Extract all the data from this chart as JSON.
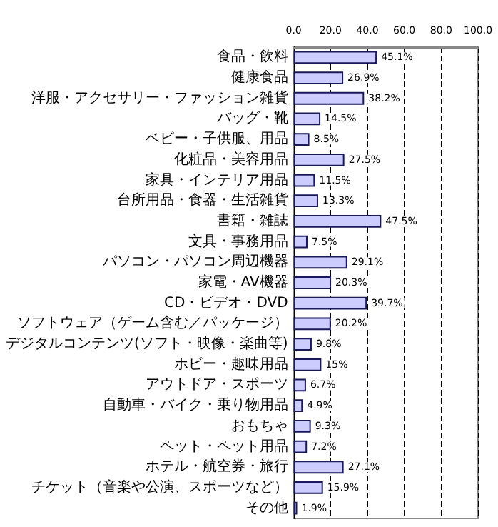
{
  "chart_data": {
    "type": "bar",
    "orientation": "horizontal",
    "categories": [
      "食品・飲料",
      "健康食品",
      "洋服・アクセサリー・ファッション雑貨",
      "バッグ・靴",
      "ベビー・子供服、用品",
      "化粧品・美容用品",
      "家具・インテリア用品",
      "台所用品・食器・生活雑貨",
      "書籍・雑誌",
      "文具・事務用品",
      "パソコン・パソコン周辺機器",
      "家電・AV機器",
      "CD・ビデオ・DVD",
      "ソフトウェア（ゲーム含む／パッケージ）",
      "デジタルコンテンツ(ソフト・映像・楽曲等)",
      "ホビー・趣味用品",
      "アウトドア・スポーツ",
      "自動車・バイク・乗り物用品",
      "おもちゃ",
      "ペット・ペット用品",
      "ホテル・航空券・旅行",
      "チケット（音楽や公演、スポーツなど）",
      "その他"
    ],
    "values": [
      45.1,
      26.9,
      38.2,
      14.5,
      8.5,
      27.5,
      11.5,
      13.3,
      47.5,
      7.5,
      29.1,
      20.3,
      39.7,
      20.2,
      9.8,
      15,
      6.7,
      4.9,
      9.3,
      7.2,
      27.1,
      15.9,
      1.9
    ],
    "value_labels": [
      "45.1%",
      "26.9%",
      "38.2%",
      "14.5%",
      "8.5%",
      "27.5%",
      "11.5%",
      "13.3%",
      "47.5%",
      "7.5%",
      "29.1%",
      "20.3%",
      "39.7%",
      "20.2%",
      "9.8%",
      "15%",
      "6.7%",
      "4.9%",
      "9.3%",
      "7.2%",
      "27.1%",
      "15.9%",
      "1.9%"
    ],
    "color": "#ccccff",
    "xlim": [
      0,
      100
    ],
    "xticks": [
      {
        "value": 0,
        "label": "0.0"
      },
      {
        "value": 20,
        "label": "20.0"
      },
      {
        "value": 40,
        "label": "40.0"
      },
      {
        "value": 60,
        "label": "60.0"
      },
      {
        "value": 80,
        "label": "80.0"
      },
      {
        "value": 100,
        "label": "100.0"
      }
    ],
    "grid": "x"
  }
}
